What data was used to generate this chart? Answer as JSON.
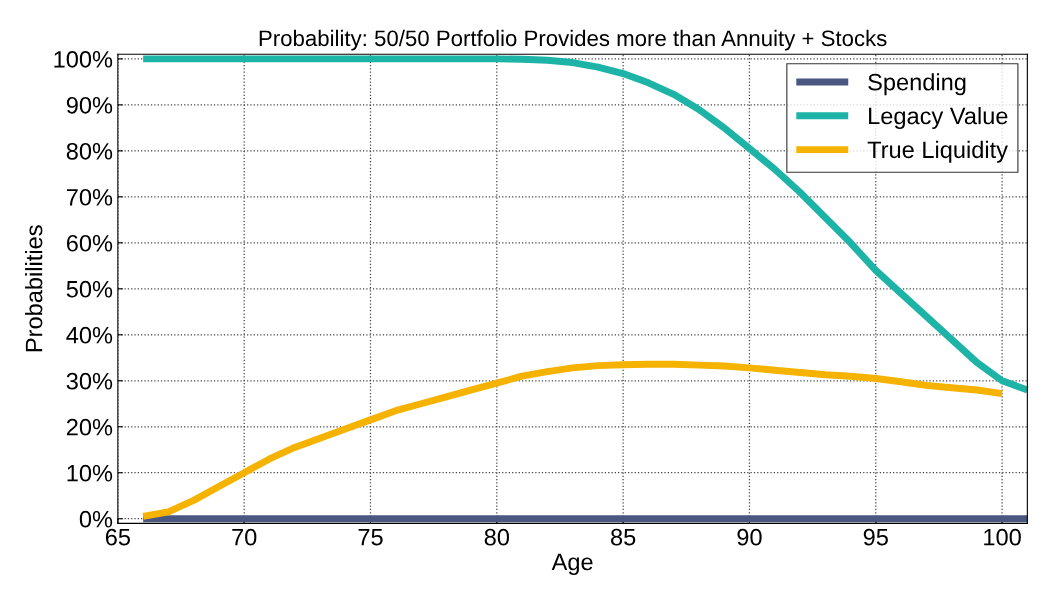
{
  "chart_data": {
    "type": "line",
    "title": "Probability: 50/50 Portfolio Provides more than Annuity + Stocks",
    "xlabel": "Age",
    "ylabel": "Probabilities",
    "series": [
      {
        "name": "Spending",
        "color": "#4a5780",
        "x": [
          66,
          70,
          75,
          80,
          85,
          90,
          95,
          101
        ],
        "values": [
          0,
          0,
          0,
          0,
          0,
          0,
          0,
          0
        ]
      },
      {
        "name": "Legacy Value",
        "color": "#1db3a6",
        "x": [
          66,
          70,
          75,
          80,
          81,
          82,
          83,
          84,
          85,
          86,
          87,
          88,
          89,
          90,
          91,
          92,
          93,
          94,
          95,
          96,
          97,
          98,
          99,
          100,
          101
        ],
        "values": [
          100,
          100,
          100,
          100,
          99.9,
          99.7,
          99.2,
          98.2,
          96.8,
          94.8,
          92.3,
          89,
          85,
          80.5,
          76,
          71,
          65.5,
          60,
          54,
          49,
          44,
          39,
          34,
          30,
          28
        ]
      },
      {
        "name": "True Liquidity",
        "color": "#f5b300",
        "x": [
          66,
          67,
          68,
          69,
          70,
          71,
          72,
          73,
          74,
          75,
          76,
          77,
          78,
          79,
          80,
          81,
          82,
          83,
          84,
          85,
          86,
          87,
          88,
          89,
          90,
          91,
          92,
          93,
          94,
          95,
          96,
          97,
          98,
          99,
          100
        ],
        "values": [
          0.5,
          1.5,
          4,
          7,
          10,
          13,
          15.5,
          17.5,
          19.5,
          21.5,
          23.5,
          25,
          26.5,
          28,
          29.5,
          31,
          32,
          32.8,
          33.3,
          33.5,
          33.6,
          33.6,
          33.4,
          33.2,
          32.8,
          32.3,
          31.8,
          31.3,
          31,
          30.5,
          29.8,
          29,
          28.5,
          28,
          27.2
        ]
      }
    ],
    "xlim": [
      65,
      101
    ],
    "xticks": [
      65,
      70,
      75,
      80,
      85,
      90,
      95,
      100
    ],
    "ylim": [
      -1,
      101
    ],
    "yticks": [
      {
        "value": 0,
        "label": "0%"
      },
      {
        "value": 10,
        "label": "10%"
      },
      {
        "value": 20,
        "label": "20%"
      },
      {
        "value": 30,
        "label": "30%"
      },
      {
        "value": 40,
        "label": "40%"
      },
      {
        "value": 50,
        "label": "50%"
      },
      {
        "value": 60,
        "label": "60%"
      },
      {
        "value": 70,
        "label": "70%"
      },
      {
        "value": 80,
        "label": "80%"
      },
      {
        "value": 90,
        "label": "90%"
      },
      {
        "value": 100,
        "label": "100%"
      }
    ],
    "grid": true,
    "legend": "top right",
    "marker": "none",
    "line_style": "solid"
  }
}
